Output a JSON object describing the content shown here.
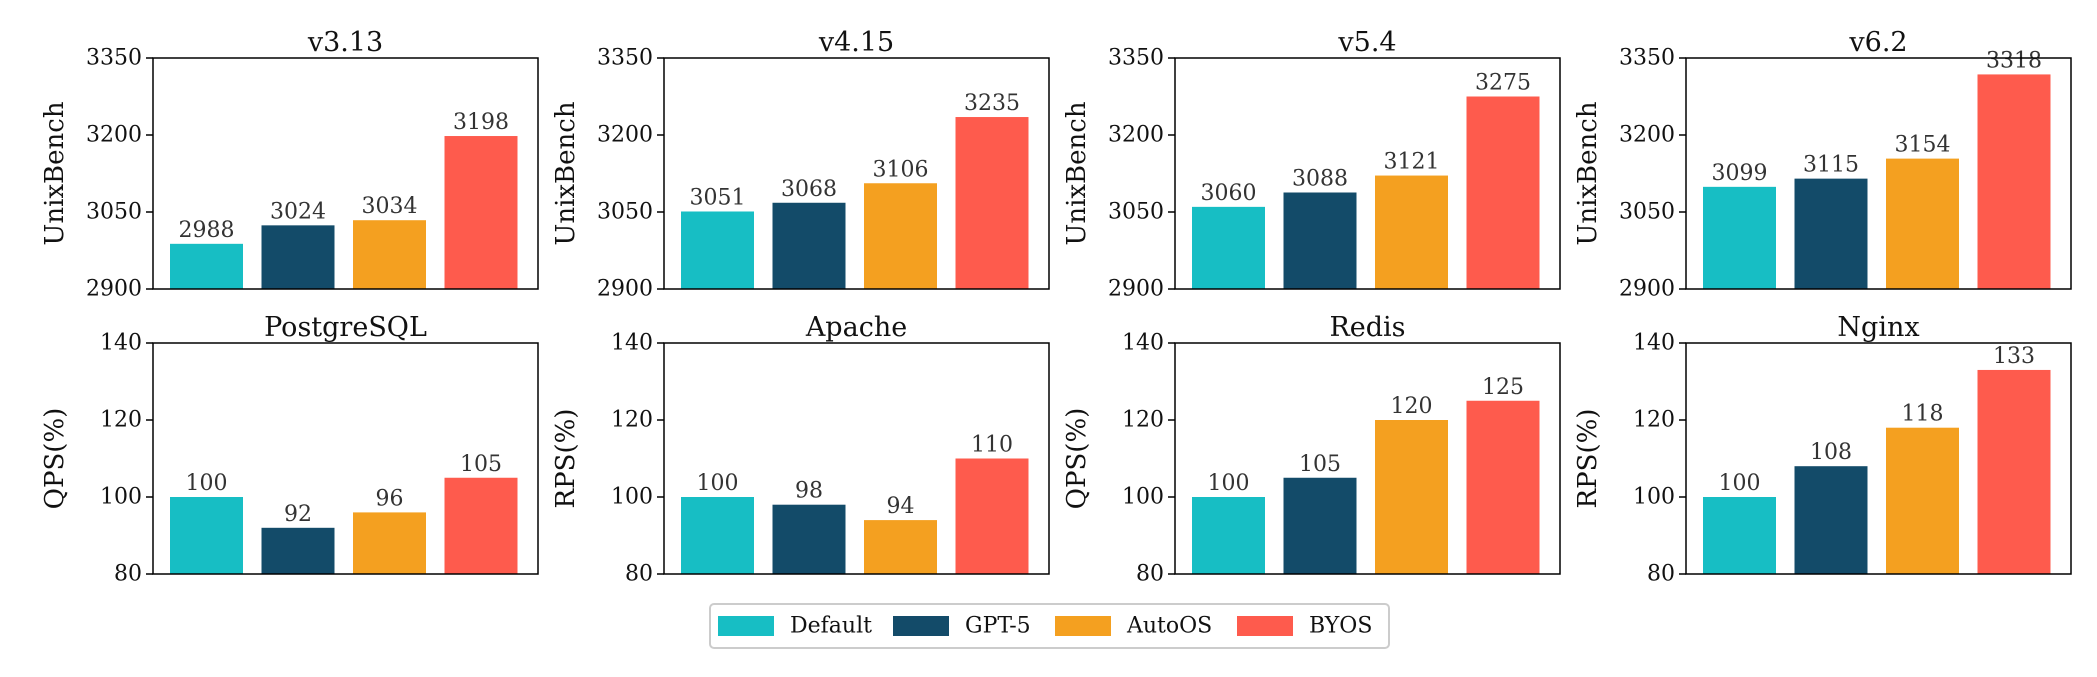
{
  "colors": {
    "Default": "#17BEC4",
    "GPT-5": "#134B69",
    "AutoOS": "#F4A020",
    "BYOS": "#FE5B4D",
    "axis": "#000000",
    "label": "#333333"
  },
  "legend": {
    "items": [
      "Default",
      "GPT-5",
      "AutoOS",
      "BYOS"
    ]
  },
  "chart_data": [
    {
      "type": "bar",
      "title": "v3.13",
      "ylabel": "UnixBench",
      "categories": [
        "Default",
        "GPT-5",
        "AutoOS",
        "BYOS"
      ],
      "values": [
        2988,
        3024,
        3034,
        3198
      ],
      "ylim": [
        2900,
        3350
      ],
      "yticks": [
        2900,
        3050,
        3200,
        3350
      ],
      "yticklabels": [
        "2900",
        "3050",
        "3200",
        "3350"
      ],
      "labels": [
        "2988",
        "3024",
        "3034",
        "3198"
      ]
    },
    {
      "type": "bar",
      "title": "v4.15",
      "ylabel": "UnixBench",
      "categories": [
        "Default",
        "GPT-5",
        "AutoOS",
        "BYOS"
      ],
      "values": [
        3051,
        3068,
        3106,
        3235
      ],
      "ylim": [
        2900,
        3350
      ],
      "yticks": [
        2900,
        3050,
        3200,
        3350
      ],
      "yticklabels": [
        "2900",
        "3050",
        "3200",
        "3350"
      ],
      "labels": [
        "3051",
        "3068",
        "3106",
        "3235"
      ]
    },
    {
      "type": "bar",
      "title": "v5.4",
      "ylabel": "UnixBench",
      "categories": [
        "Default",
        "GPT-5",
        "AutoOS",
        "BYOS"
      ],
      "values": [
        3060,
        3088,
        3121,
        3275
      ],
      "ylim": [
        2900,
        3350
      ],
      "yticks": [
        2900,
        3050,
        3200,
        3350
      ],
      "yticklabels": [
        "2900",
        "3050",
        "3200",
        "3350"
      ],
      "labels": [
        "3060",
        "3088",
        "3121",
        "3275"
      ]
    },
    {
      "type": "bar",
      "title": "v6.2",
      "ylabel": "UnixBench",
      "categories": [
        "Default",
        "GPT-5",
        "AutoOS",
        "BYOS"
      ],
      "values": [
        3099,
        3115,
        3154,
        3318
      ],
      "ylim": [
        2900,
        3350
      ],
      "yticks": [
        2900,
        3050,
        3200,
        3350
      ],
      "yticklabels": [
        "2900",
        "3050",
        "3200",
        "3350"
      ],
      "labels": [
        "3099",
        "3115",
        "3154",
        "3318"
      ]
    },
    {
      "type": "bar",
      "title": "PostgreSQL",
      "ylabel": "QPS(%)",
      "categories": [
        "Default",
        "GPT-5",
        "AutoOS",
        "BYOS"
      ],
      "values": [
        100,
        92,
        96,
        105
      ],
      "ylim": [
        80,
        140
      ],
      "yticks": [
        80,
        100,
        120,
        140
      ],
      "yticklabels": [
        "80",
        "100",
        "120",
        "140"
      ],
      "labels": [
        "100",
        "92",
        "96",
        "105"
      ]
    },
    {
      "type": "bar",
      "title": "Apache",
      "ylabel": "RPS(%)",
      "categories": [
        "Default",
        "GPT-5",
        "AutoOS",
        "BYOS"
      ],
      "values": [
        100,
        98,
        94,
        110
      ],
      "ylim": [
        80,
        140
      ],
      "yticks": [
        80,
        100,
        120,
        140
      ],
      "yticklabels": [
        "80",
        "100",
        "120",
        "140"
      ],
      "labels": [
        "100",
        "98",
        "94",
        "110"
      ]
    },
    {
      "type": "bar",
      "title": "Redis",
      "ylabel": "QPS(%)",
      "categories": [
        "Default",
        "GPT-5",
        "AutoOS",
        "BYOS"
      ],
      "values": [
        100,
        105,
        120,
        125
      ],
      "ylim": [
        80,
        140
      ],
      "yticks": [
        80,
        100,
        120,
        140
      ],
      "yticklabels": [
        "80",
        "100",
        "120",
        "140"
      ],
      "labels": [
        "100",
        "105",
        "120",
        "125"
      ]
    },
    {
      "type": "bar",
      "title": "Nginx",
      "ylabel": "RPS(%)",
      "categories": [
        "Default",
        "GPT-5",
        "AutoOS",
        "BYOS"
      ],
      "values": [
        100,
        108,
        118,
        133
      ],
      "ylim": [
        80,
        140
      ],
      "yticks": [
        80,
        100,
        120,
        140
      ],
      "yticklabels": [
        "80",
        "100",
        "120",
        "140"
      ],
      "labels": [
        "100",
        "108",
        "118",
        "133"
      ]
    }
  ]
}
